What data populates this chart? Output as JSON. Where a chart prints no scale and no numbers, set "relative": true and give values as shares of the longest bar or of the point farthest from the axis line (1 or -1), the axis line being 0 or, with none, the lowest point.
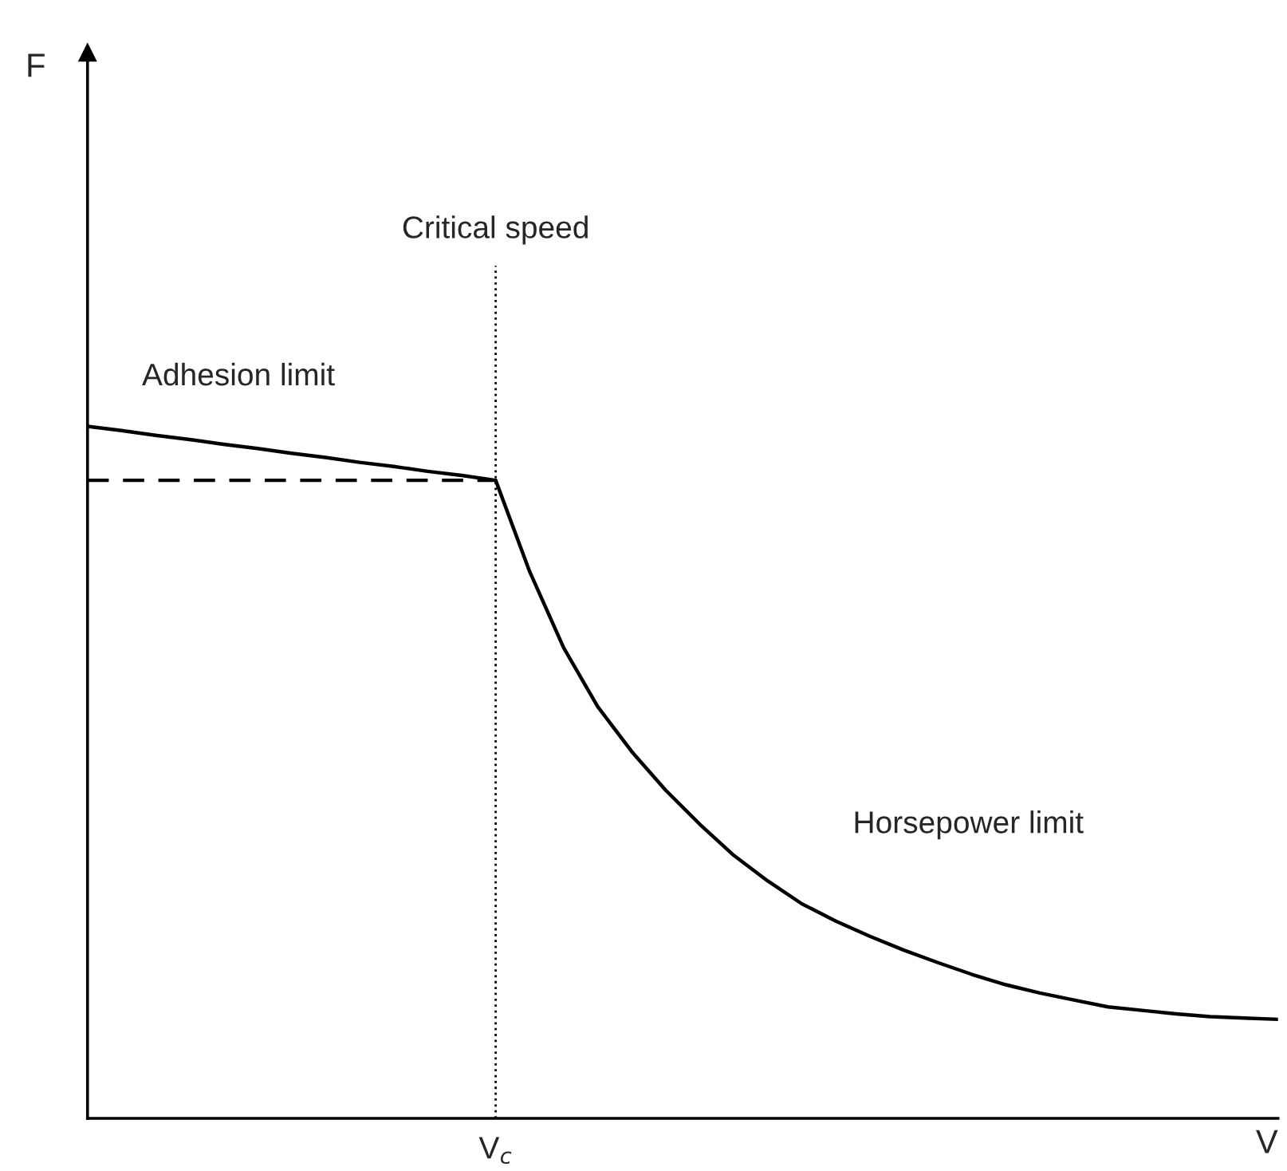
{
  "chart_data": {
    "type": "line",
    "relative": true,
    "xlabel": "V",
    "categories": [
      null,
      null,
      null,
      null,
      null,
      null,
      null,
      null,
      null,
      null,
      null,
      null,
      null,
      null,
      null,
      null,
      null,
      null,
      null,
      null,
      null,
      null,
      null,
      null,
      null,
      null,
      null,
      null,
      null,
      null,
      null,
      null,
      null,
      null,
      null,
      null
    ],
    "annotations": [
      "V$_{c}$",
      "F"
    ],
    "marker": "none",
    "series": [
      {
        "name": "Adhesion limit",
        "color": "#000000",
        "line_style": "solid",
        "values": [
          1,
          0.994,
          0.987,
          0.981,
          0.974,
          0.968,
          0.961,
          0.955,
          0.948,
          0.942,
          0.935,
          0.929,
          0.922,
          null,
          null,
          null,
          null,
          null,
          null,
          null,
          null,
          null,
          null,
          null,
          null,
          null,
          null,
          null,
          null,
          null,
          null,
          null,
          null,
          null,
          null,
          null
        ]
      },
      {
        "color": "#000000",
        "line_style": "dashed",
        "values": [
          0.922,
          0.922,
          0.922,
          0.922,
          0.922,
          0.922,
          0.922,
          0.922,
          0.922,
          0.922,
          0.922,
          0.922,
          0.922,
          null,
          null,
          null,
          null,
          null,
          null,
          null,
          null,
          null,
          null,
          null,
          null,
          null,
          null,
          null,
          null,
          null,
          null,
          null,
          null,
          null,
          null,
          null
        ]
      },
      {
        "name": "Horsepower limit",
        "color": "#000000",
        "line_style": "solid",
        "values": [
          null,
          null,
          null,
          null,
          null,
          null,
          null,
          null,
          null,
          null,
          null,
          null,
          0.922,
          0.79,
          0.68,
          0.595,
          0.53,
          0.474,
          0.425,
          0.38,
          0.343,
          0.31,
          0.285,
          0.263,
          0.243,
          0.225,
          0.208,
          0.193,
          0.181,
          0.171,
          0.161,
          0.156,
          0.151,
          0.147,
          0.145,
          0.143
        ]
      }
    ],
    "ref_lines": [
      {
        "axis": "x",
        "label": "Critical speed",
        "color": "#000000",
        "line_style": "dotted"
      }
    ]
  }
}
